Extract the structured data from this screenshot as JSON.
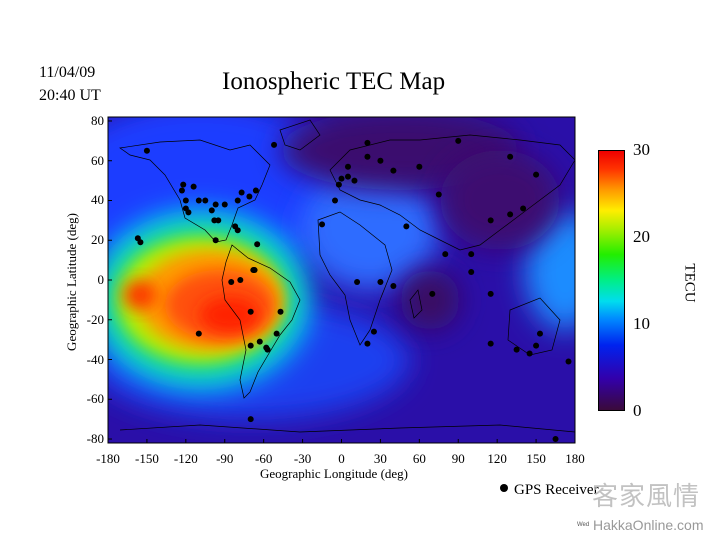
{
  "header": {
    "date": "11/04/09",
    "time": "20:40 UT",
    "title": "Ionospheric TEC Map"
  },
  "axes": {
    "xlabel": "Geographic Longitude (deg)",
    "ylabel": "Geographic Latitude (deg)",
    "xticks": [
      "-180",
      "-150",
      "-120",
      "-90",
      "-60",
      "-30",
      "0",
      "30",
      "60",
      "90",
      "120",
      "150",
      "180"
    ],
    "yticks": [
      "80",
      "60",
      "40",
      "20",
      "0",
      "-20",
      "-40",
      "-60",
      "-80"
    ],
    "xrange": [
      -180,
      180
    ],
    "yrange": [
      -82,
      82
    ]
  },
  "colorbar": {
    "label": "TECU",
    "ticks": [
      "30",
      "20",
      "10",
      "0"
    ],
    "range": [
      0,
      30
    ],
    "colors": [
      "#3a0a3a",
      "#3300aa",
      "#0022ee",
      "#0088ff",
      "#00ddee",
      "#00ee88",
      "#22ee00",
      "#aaee00",
      "#ffee00",
      "#ff9900",
      "#ff3300",
      "#ee0000"
    ]
  },
  "legend": {
    "label": "GPS Receiver"
  },
  "watermark": {
    "chinese": "客家風情",
    "site": "HakkaOnline.com",
    "small": "Wed"
  },
  "receivers": [
    [
      -150,
      65
    ],
    [
      -122,
      48
    ],
    [
      -123,
      45
    ],
    [
      -114,
      47
    ],
    [
      -105,
      40
    ],
    [
      -97,
      38
    ],
    [
      -90,
      38
    ],
    [
      -80,
      40
    ],
    [
      -77,
      44
    ],
    [
      -71,
      42
    ],
    [
      -66,
      45
    ],
    [
      -120,
      36
    ],
    [
      -118,
      34
    ],
    [
      -98,
      30
    ],
    [
      -95,
      30
    ],
    [
      -82,
      27
    ],
    [
      -80,
      25
    ],
    [
      -97,
      20
    ],
    [
      -65,
      18
    ],
    [
      -157,
      21
    ],
    [
      -155,
      19
    ],
    [
      -78,
      0
    ],
    [
      -68,
      5
    ],
    [
      -67,
      5
    ],
    [
      -85,
      -1
    ],
    [
      -70,
      -16
    ],
    [
      -47,
      -16
    ],
    [
      -110,
      -27
    ],
    [
      -70,
      -33
    ],
    [
      -63,
      -31
    ],
    [
      -58,
      -34
    ],
    [
      -57,
      -35
    ],
    [
      -50,
      -27
    ],
    [
      -100,
      35
    ],
    [
      -120,
      40
    ],
    [
      -110,
      40
    ],
    [
      -52,
      68
    ],
    [
      -15,
      28
    ],
    [
      0,
      51
    ],
    [
      5,
      52
    ],
    [
      10,
      50
    ],
    [
      -5,
      40
    ],
    [
      -2,
      48
    ],
    [
      5,
      57
    ],
    [
      20,
      69
    ],
    [
      20,
      62
    ],
    [
      30,
      60
    ],
    [
      40,
      55
    ],
    [
      60,
      57
    ],
    [
      75,
      43
    ],
    [
      90,
      70
    ],
    [
      130,
      62
    ],
    [
      150,
      53
    ],
    [
      140,
      36
    ],
    [
      130,
      33
    ],
    [
      115,
      30
    ],
    [
      100,
      13
    ],
    [
      80,
      13
    ],
    [
      100,
      4
    ],
    [
      70,
      -7
    ],
    [
      50,
      27
    ],
    [
      115,
      -7
    ],
    [
      40,
      -3
    ],
    [
      30,
      -1
    ],
    [
      12,
      -1
    ],
    [
      25,
      -26
    ],
    [
      20,
      -32
    ],
    [
      115,
      -32
    ],
    [
      135,
      -35
    ],
    [
      145,
      -37
    ],
    [
      150,
      -33
    ],
    [
      175,
      -41
    ],
    [
      153,
      -27
    ],
    [
      165,
      -80
    ],
    [
      -70,
      -70
    ]
  ]
}
